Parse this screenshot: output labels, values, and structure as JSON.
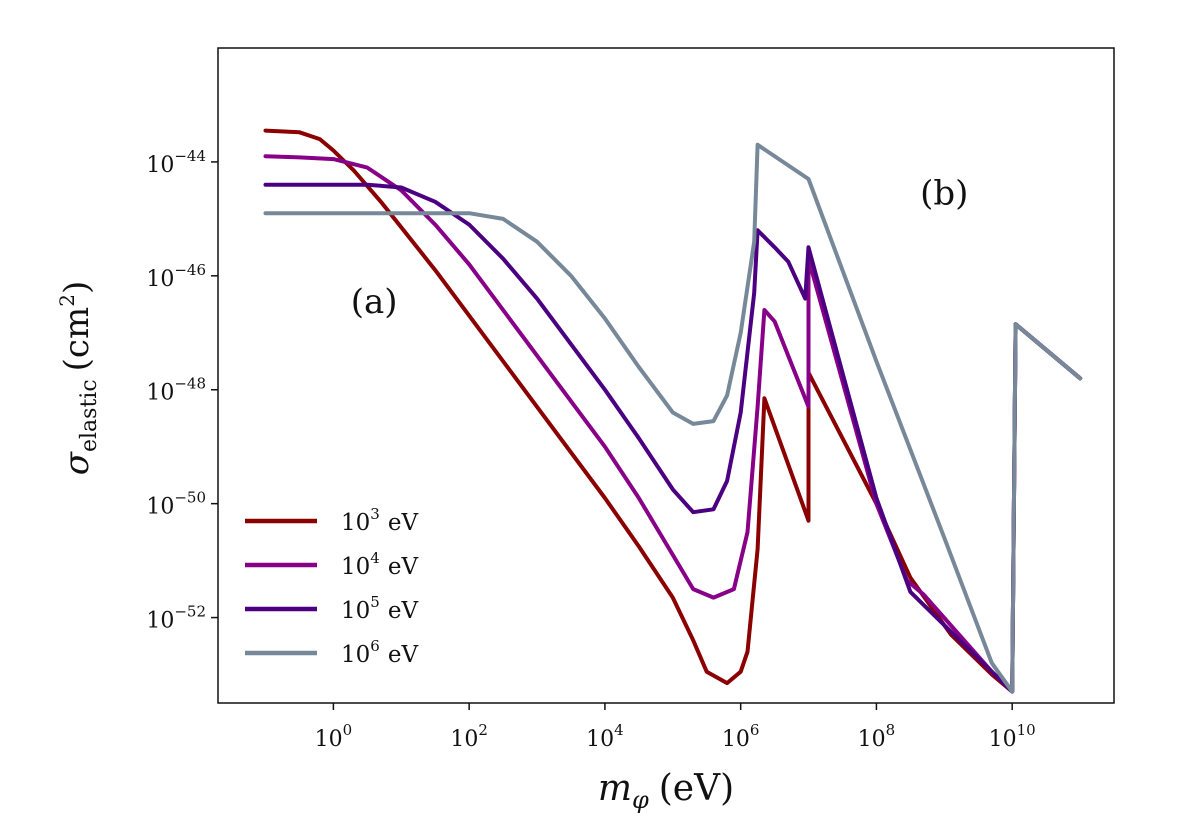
{
  "chart_data": {
    "type": "line",
    "title": "",
    "xlabel_parts": {
      "main": "m",
      "sub": "φ",
      "unit": "(eV)"
    },
    "ylabel_parts": {
      "main": "σ",
      "sub": "elastic",
      "unit_open": "(cm",
      "unit_sup": "2",
      "unit_close": ")"
    },
    "xscale": "log",
    "yscale": "log",
    "xlim_log10": [
      -1.7,
      11.5
    ],
    "ylim_log10": [
      -53.5,
      -42.0
    ],
    "x_ticks": [
      {
        "base": "10",
        "exp": "0",
        "log10": 0
      },
      {
        "base": "10",
        "exp": "2",
        "log10": 2
      },
      {
        "base": "10",
        "exp": "4",
        "log10": 4
      },
      {
        "base": "10",
        "exp": "6",
        "log10": 6
      },
      {
        "base": "10",
        "exp": "8",
        "log10": 8
      },
      {
        "base": "10",
        "exp": "10",
        "log10": 10
      }
    ],
    "y_ticks": [
      {
        "base": "10",
        "exp": "−44",
        "log10": -44
      },
      {
        "base": "10",
        "exp": "−46",
        "log10": -46
      },
      {
        "base": "10",
        "exp": "−48",
        "log10": -48
      },
      {
        "base": "10",
        "exp": "−50",
        "log10": -50
      },
      {
        "base": "10",
        "exp": "−52",
        "log10": -52
      }
    ],
    "annotations": [
      {
        "text": "(a)",
        "x_log10": 0.6,
        "y_log10": -46.65
      },
      {
        "text": "(b)",
        "x_log10": 9.0,
        "y_log10": -44.75
      }
    ],
    "legend": {
      "placement": "lower-left"
    },
    "series": [
      {
        "name_base": "10",
        "name_exp": "3",
        "name_unit": "eV",
        "color": "#8b0000",
        "points_log10": [
          [
            -1.0,
            -43.45
          ],
          [
            -0.5,
            -43.48
          ],
          [
            -0.2,
            -43.6
          ],
          [
            0.0,
            -43.8
          ],
          [
            0.3,
            -44.15
          ],
          [
            0.7,
            -44.7
          ],
          [
            1.0,
            -45.15
          ],
          [
            1.5,
            -45.9
          ],
          [
            2.0,
            -46.7
          ],
          [
            3.0,
            -48.3
          ],
          [
            4.0,
            -49.9
          ],
          [
            4.5,
            -50.75
          ],
          [
            5.0,
            -51.65
          ],
          [
            5.3,
            -52.4
          ],
          [
            5.5,
            -52.95
          ],
          [
            5.8,
            -53.15
          ],
          [
            6.0,
            -52.95
          ],
          [
            6.1,
            -52.6
          ],
          [
            6.25,
            -50.8
          ],
          [
            6.35,
            -48.15
          ],
          [
            7.0,
            -50.3
          ],
          [
            7.0,
            -47.7
          ],
          [
            8.0,
            -50.0
          ],
          [
            8.5,
            -51.3
          ],
          [
            9.1,
            -52.3
          ],
          [
            9.7,
            -53.0
          ],
          [
            10.0,
            -53.3
          ],
          [
            10.05,
            -46.85
          ],
          [
            11.0,
            -47.8
          ]
        ]
      },
      {
        "name_base": "10",
        "name_exp": "4",
        "name_unit": "eV",
        "color": "#880088",
        "points_log10": [
          [
            -1.0,
            -43.9
          ],
          [
            -0.5,
            -43.92
          ],
          [
            0.0,
            -43.95
          ],
          [
            0.5,
            -44.1
          ],
          [
            1.0,
            -44.5
          ],
          [
            1.5,
            -45.1
          ],
          [
            2.0,
            -45.8
          ],
          [
            3.0,
            -47.4
          ],
          [
            4.0,
            -49.0
          ],
          [
            4.5,
            -49.9
          ],
          [
            5.0,
            -50.9
          ],
          [
            5.3,
            -51.5
          ],
          [
            5.6,
            -51.65
          ],
          [
            5.9,
            -51.5
          ],
          [
            6.1,
            -50.5
          ],
          [
            6.25,
            -48.3
          ],
          [
            6.35,
            -46.6
          ],
          [
            6.5,
            -46.8
          ],
          [
            7.0,
            -48.3
          ],
          [
            7.0,
            -45.7
          ],
          [
            8.0,
            -50.0
          ],
          [
            8.45,
            -51.35
          ],
          [
            8.7,
            -51.6
          ],
          [
            9.7,
            -52.95
          ],
          [
            10.0,
            -53.3
          ],
          [
            10.05,
            -46.85
          ],
          [
            11.0,
            -47.8
          ]
        ]
      },
      {
        "name_base": "10",
        "name_exp": "5",
        "name_unit": "eV",
        "color": "#4b0082",
        "points_log10": [
          [
            -1.0,
            -44.4
          ],
          [
            0.0,
            -44.4
          ],
          [
            0.5,
            -44.4
          ],
          [
            1.0,
            -44.45
          ],
          [
            1.5,
            -44.7
          ],
          [
            2.0,
            -45.1
          ],
          [
            2.5,
            -45.7
          ],
          [
            3.0,
            -46.4
          ],
          [
            4.0,
            -48.0
          ],
          [
            4.5,
            -48.85
          ],
          [
            5.0,
            -49.75
          ],
          [
            5.3,
            -50.15
          ],
          [
            5.6,
            -50.1
          ],
          [
            5.8,
            -49.6
          ],
          [
            6.0,
            -48.4
          ],
          [
            6.2,
            -46.3
          ],
          [
            6.25,
            -45.2
          ],
          [
            6.5,
            -45.5
          ],
          [
            6.7,
            -45.75
          ],
          [
            6.95,
            -46.4
          ],
          [
            7.0,
            -45.5
          ],
          [
            8.0,
            -49.9
          ],
          [
            8.5,
            -51.55
          ],
          [
            9.7,
            -52.95
          ],
          [
            10.0,
            -53.3
          ],
          [
            10.05,
            -46.85
          ],
          [
            11.0,
            -47.8
          ]
        ]
      },
      {
        "name_base": "10",
        "name_exp": "6",
        "name_unit": "eV",
        "color": "#778899",
        "points_log10": [
          [
            -1.0,
            -44.9
          ],
          [
            0.0,
            -44.9
          ],
          [
            1.0,
            -44.9
          ],
          [
            2.0,
            -44.9
          ],
          [
            2.5,
            -45.0
          ],
          [
            3.0,
            -45.4
          ],
          [
            3.5,
            -46.0
          ],
          [
            4.0,
            -46.75
          ],
          [
            4.5,
            -47.6
          ],
          [
            5.0,
            -48.4
          ],
          [
            5.3,
            -48.6
          ],
          [
            5.6,
            -48.55
          ],
          [
            5.8,
            -48.1
          ],
          [
            6.0,
            -47.0
          ],
          [
            6.2,
            -45.4
          ],
          [
            6.25,
            -43.7
          ],
          [
            7.0,
            -44.3
          ],
          [
            8.0,
            -47.5
          ],
          [
            9.0,
            -50.6
          ],
          [
            9.7,
            -52.8
          ],
          [
            10.0,
            -53.3
          ],
          [
            10.05,
            -46.85
          ],
          [
            11.0,
            -47.8
          ]
        ]
      }
    ]
  }
}
